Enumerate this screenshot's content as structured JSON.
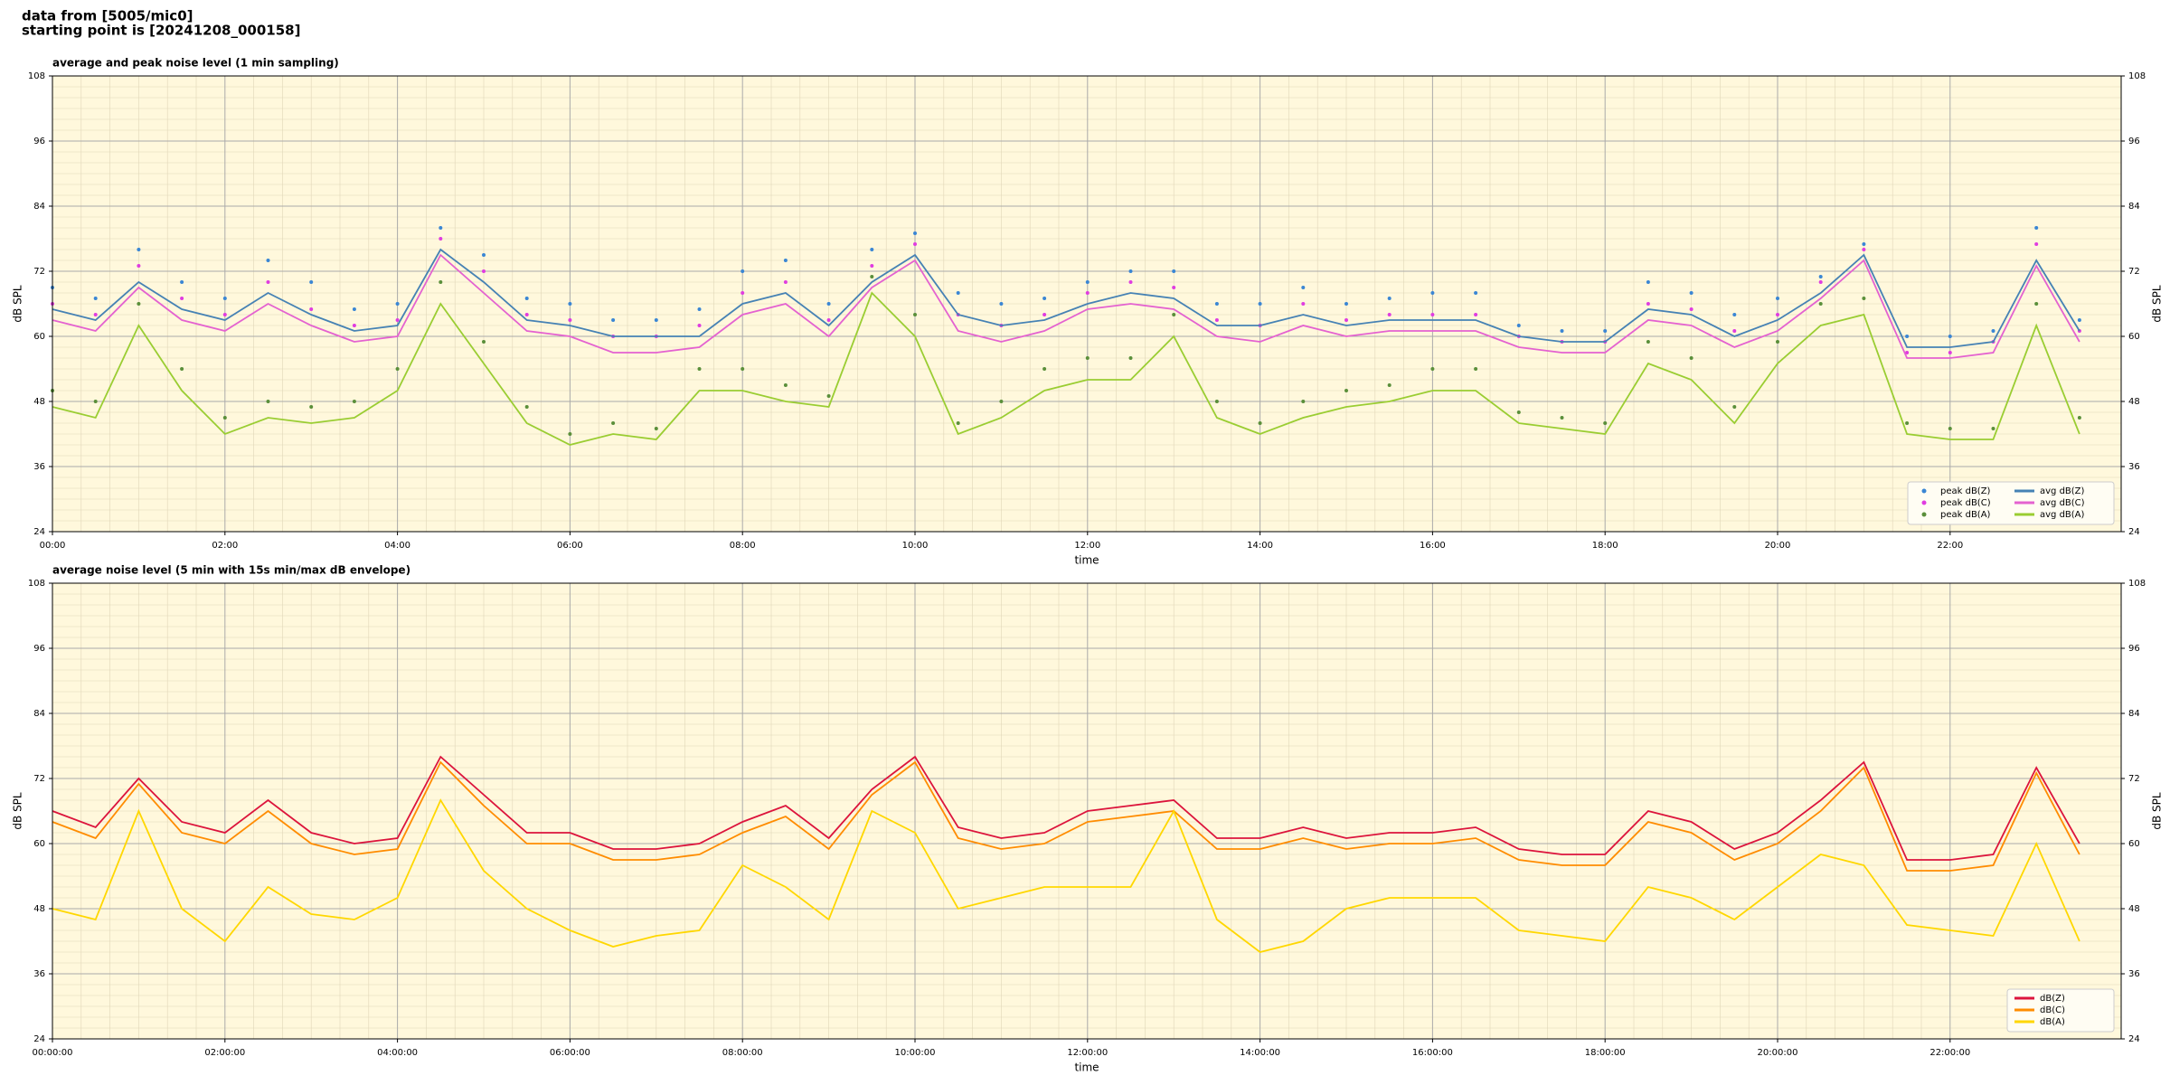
{
  "header": {
    "lines": [
      "data from [5005/mic0]",
      "starting point is [20241208_000158]"
    ]
  },
  "chart_data": [
    {
      "type": "line",
      "title": "average and peak noise level (1 min sampling)",
      "x_label": "time",
      "y_label": "dB SPL",
      "x": [
        "00:00",
        "00:30",
        "01:00",
        "01:30",
        "02:00",
        "02:30",
        "03:00",
        "03:30",
        "04:00",
        "04:30",
        "05:00",
        "05:30",
        "06:00",
        "06:30",
        "07:00",
        "07:30",
        "08:00",
        "08:30",
        "09:00",
        "09:30",
        "10:00",
        "10:30",
        "11:00",
        "11:30",
        "12:00",
        "12:30",
        "13:00",
        "13:30",
        "14:00",
        "14:30",
        "15:00",
        "15:30",
        "16:00",
        "16:30",
        "17:00",
        "17:30",
        "18:00",
        "18:30",
        "19:00",
        "19:30",
        "20:00",
        "20:30",
        "21:00",
        "21:30",
        "22:00",
        "22:30",
        "23:00",
        "23:30"
      ],
      "xlim": [
        "00:00",
        "23:59"
      ],
      "xticks": [
        "00:00",
        "02:00",
        "04:00",
        "06:00",
        "08:00",
        "10:00",
        "12:00",
        "14:00",
        "16:00",
        "18:00",
        "20:00",
        "22:00"
      ],
      "ylim": [
        24,
        108
      ],
      "yticks": [
        24,
        36,
        48,
        60,
        72,
        84,
        96,
        108
      ],
      "grid": true,
      "background": "#fff8dc",
      "legend": "lower right",
      "series": [
        {
          "name": "peak dB(Z)",
          "color": "#3a86d4",
          "marker": "dot",
          "values": [
            69,
            67,
            76,
            70,
            67,
            74,
            70,
            65,
            66,
            80,
            75,
            67,
            66,
            63,
            63,
            65,
            72,
            74,
            66,
            76,
            79,
            68,
            66,
            67,
            70,
            72,
            72,
            66,
            66,
            69,
            66,
            67,
            68,
            68,
            62,
            61,
            61,
            70,
            68,
            64,
            67,
            71,
            77,
            60,
            60,
            61,
            80,
            63
          ]
        },
        {
          "name": "peak dB(C)",
          "color": "#e03ce0",
          "marker": "dot",
          "values": [
            66,
            64,
            73,
            67,
            64,
            70,
            65,
            62,
            63,
            78,
            72,
            64,
            63,
            60,
            60,
            62,
            68,
            70,
            63,
            73,
            77,
            64,
            62,
            64,
            68,
            70,
            69,
            63,
            62,
            66,
            63,
            64,
            64,
            64,
            60,
            59,
            59,
            66,
            65,
            61,
            64,
            70,
            76,
            57,
            57,
            59,
            77,
            61
          ]
        },
        {
          "name": "peak dB(A)",
          "color": "#5a8f3a",
          "marker": "dot",
          "values": [
            50,
            48,
            66,
            54,
            45,
            48,
            47,
            48,
            54,
            70,
            59,
            47,
            42,
            44,
            43,
            54,
            54,
            51,
            49,
            71,
            64,
            44,
            48,
            54,
            56,
            56,
            64,
            48,
            44,
            48,
            50,
            51,
            54,
            54,
            46,
            45,
            44,
            59,
            56,
            47,
            59,
            66,
            67,
            44,
            43,
            43,
            66,
            45
          ]
        },
        {
          "name": "avg dB(Z)",
          "color": "#4682b4",
          "marker": "line",
          "values": [
            65,
            63,
            70,
            65,
            63,
            68,
            64,
            61,
            62,
            76,
            70,
            63,
            62,
            60,
            60,
            60,
            66,
            68,
            62,
            70,
            75,
            64,
            62,
            63,
            66,
            68,
            67,
            62,
            62,
            64,
            62,
            63,
            63,
            63,
            60,
            59,
            59,
            65,
            64,
            60,
            63,
            68,
            75,
            58,
            58,
            59,
            74,
            61
          ]
        },
        {
          "name": "avg dB(C)",
          "color": "#e462d0",
          "marker": "line",
          "values": [
            63,
            61,
            69,
            63,
            61,
            66,
            62,
            59,
            60,
            75,
            68,
            61,
            60,
            57,
            57,
            58,
            64,
            66,
            60,
            69,
            74,
            61,
            59,
            61,
            65,
            66,
            65,
            60,
            59,
            62,
            60,
            61,
            61,
            61,
            58,
            57,
            57,
            63,
            62,
            58,
            61,
            67,
            74,
            56,
            56,
            57,
            73,
            59
          ]
        },
        {
          "name": "avg dB(A)",
          "color": "#9acd32",
          "marker": "line",
          "values": [
            47,
            45,
            62,
            50,
            42,
            45,
            44,
            45,
            50,
            66,
            55,
            44,
            40,
            42,
            41,
            50,
            50,
            48,
            47,
            68,
            60,
            42,
            45,
            50,
            52,
            52,
            60,
            45,
            42,
            45,
            47,
            48,
            50,
            50,
            44,
            43,
            42,
            55,
            52,
            44,
            55,
            62,
            64,
            42,
            41,
            41,
            62,
            42
          ]
        }
      ]
    },
    {
      "type": "line",
      "title": "average noise level (5 min with 15s min/max dB envelope)",
      "x_label": "time",
      "y_label": "dB SPL",
      "x": [
        "00:00:00",
        "00:30:00",
        "01:00:00",
        "01:30:00",
        "02:00:00",
        "02:30:00",
        "03:00:00",
        "03:30:00",
        "04:00:00",
        "04:30:00",
        "05:00:00",
        "05:30:00",
        "06:00:00",
        "06:30:00",
        "07:00:00",
        "07:30:00",
        "08:00:00",
        "08:30:00",
        "09:00:00",
        "09:30:00",
        "10:00:00",
        "10:30:00",
        "11:00:00",
        "11:30:00",
        "12:00:00",
        "12:30:00",
        "13:00:00",
        "13:30:00",
        "14:00:00",
        "14:30:00",
        "15:00:00",
        "15:30:00",
        "16:00:00",
        "16:30:00",
        "17:00:00",
        "17:30:00",
        "18:00:00",
        "18:30:00",
        "19:00:00",
        "19:30:00",
        "20:00:00",
        "20:30:00",
        "21:00:00",
        "21:30:00",
        "22:00:00",
        "22:30:00",
        "23:00:00",
        "23:30:00"
      ],
      "xlim": [
        "00:00:00",
        "23:59:00"
      ],
      "xticks": [
        "00:00:00",
        "02:00:00",
        "04:00:00",
        "06:00:00",
        "08:00:00",
        "10:00:00",
        "12:00:00",
        "14:00:00",
        "16:00:00",
        "18:00:00",
        "20:00:00",
        "22:00:00"
      ],
      "ylim": [
        24,
        108
      ],
      "yticks": [
        24,
        36,
        48,
        60,
        72,
        84,
        96,
        108
      ],
      "grid": true,
      "background": "#fff8dc",
      "legend": "lower right",
      "series": [
        {
          "name": "dB(Z)",
          "color": "#dc143c",
          "marker": "line",
          "values": [
            66,
            63,
            72,
            64,
            62,
            68,
            62,
            60,
            61,
            76,
            69,
            62,
            62,
            59,
            59,
            60,
            64,
            67,
            61,
            70,
            76,
            63,
            61,
            62,
            66,
            67,
            68,
            61,
            61,
            63,
            61,
            62,
            62,
            63,
            59,
            58,
            58,
            66,
            64,
            59,
            62,
            68,
            75,
            57,
            57,
            58,
            74,
            60
          ]
        },
        {
          "name": "dB(C)",
          "color": "#ff8c00",
          "marker": "line",
          "values": [
            64,
            61,
            71,
            62,
            60,
            66,
            60,
            58,
            59,
            75,
            67,
            60,
            60,
            57,
            57,
            58,
            62,
            65,
            59,
            69,
            75,
            61,
            59,
            60,
            64,
            65,
            66,
            59,
            59,
            61,
            59,
            60,
            60,
            61,
            57,
            56,
            56,
            64,
            62,
            57,
            60,
            66,
            74,
            55,
            55,
            56,
            73,
            58
          ]
        },
        {
          "name": "dB(A)",
          "color": "#ffd700",
          "marker": "line",
          "values": [
            48,
            46,
            66,
            48,
            42,
            52,
            47,
            46,
            50,
            68,
            55,
            48,
            44,
            41,
            43,
            44,
            56,
            52,
            46,
            66,
            62,
            48,
            50,
            52,
            52,
            52,
            66,
            46,
            40,
            42,
            48,
            50,
            50,
            50,
            44,
            43,
            42,
            52,
            50,
            46,
            52,
            58,
            56,
            45,
            44,
            43,
            60,
            42
          ]
        }
      ]
    }
  ]
}
